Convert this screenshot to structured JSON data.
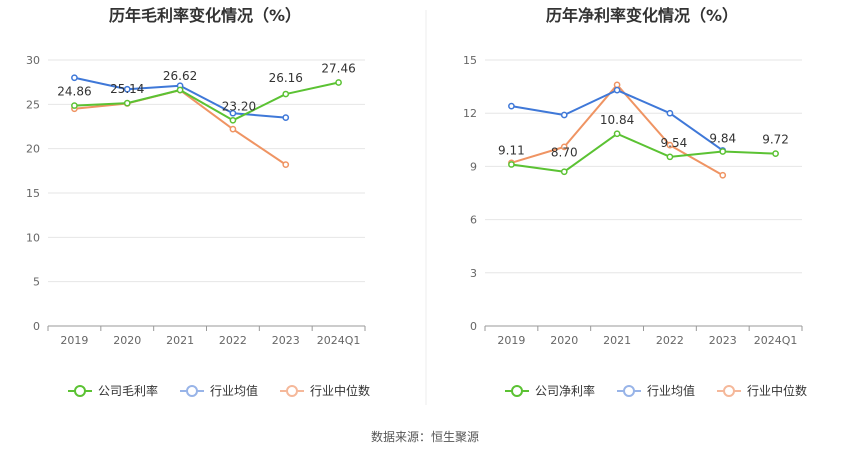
{
  "source_note": "数据来源：恒生聚源",
  "colors": {
    "company": "#5bc233",
    "industry_avg": "#3f78d8",
    "industry_median": "#ef9463",
    "grid": "#e6e6e6",
    "axis": "#999999",
    "text": "#666666",
    "title": "#333333"
  },
  "chart_data": [
    {
      "type": "line",
      "title": "历年毛利率变化情况（%）",
      "categories": [
        "2019",
        "2020",
        "2021",
        "2022",
        "2023",
        "2024Q1"
      ],
      "ylim": [
        0,
        30
      ],
      "yticks": [
        0,
        5,
        10,
        15,
        20,
        25,
        30
      ],
      "grid": true,
      "legend": "bottom",
      "series": [
        {
          "name": "公司毛利率",
          "values": [
            24.86,
            25.14,
            26.62,
            23.2,
            26.16,
            27.46
          ],
          "labels": [
            "24.86",
            "25.14",
            "26.62",
            "23.20",
            "26.16",
            "27.46"
          ],
          "color": "#5bc233"
        },
        {
          "name": "行业均值",
          "values": [
            28.0,
            26.7,
            27.1,
            24.0,
            23.5,
            null
          ],
          "color": "#3f78d8"
        },
        {
          "name": "行业中位数",
          "values": [
            24.5,
            25.1,
            26.6,
            22.2,
            18.2,
            null
          ],
          "color": "#ef9463"
        }
      ]
    },
    {
      "type": "line",
      "title": "历年净利率变化情况（%）",
      "categories": [
        "2019",
        "2020",
        "2021",
        "2022",
        "2023",
        "2024Q1"
      ],
      "ylim": [
        0,
        15
      ],
      "yticks": [
        0,
        3,
        6,
        9,
        12,
        15
      ],
      "grid": true,
      "legend": "bottom",
      "series": [
        {
          "name": "公司净利率",
          "values": [
            9.11,
            8.7,
            10.84,
            9.54,
            9.84,
            9.72
          ],
          "labels": [
            "9.11",
            "8.70",
            "10.84",
            "9.54",
            "9.84",
            "9.72"
          ],
          "color": "#5bc233"
        },
        {
          "name": "行业均值",
          "values": [
            12.4,
            11.9,
            13.3,
            12.0,
            9.9,
            null
          ],
          "color": "#3f78d8"
        },
        {
          "name": "行业中位数",
          "values": [
            9.2,
            10.1,
            13.6,
            10.2,
            8.5,
            null
          ],
          "color": "#ef9463"
        }
      ]
    }
  ]
}
